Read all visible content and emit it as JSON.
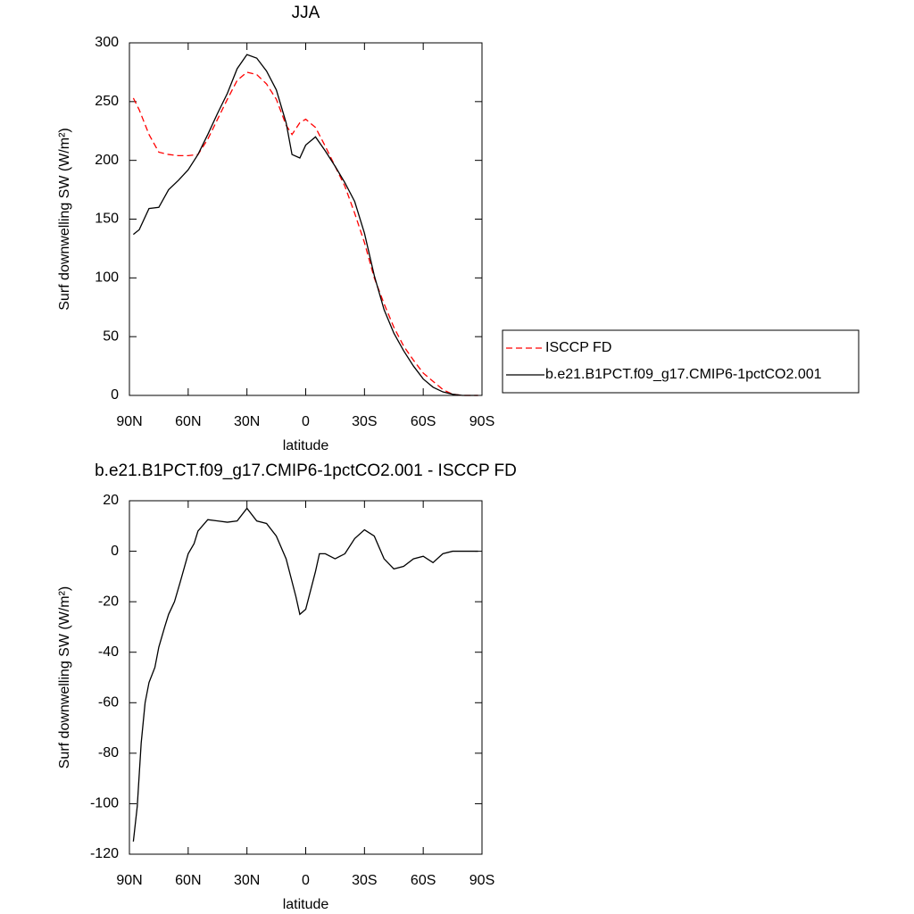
{
  "chart_data": [
    {
      "type": "line",
      "title": "JJA",
      "xlabel": "latitude",
      "ylabel": "Surf downwelling SW (W/m²)",
      "x": [
        88,
        85,
        80,
        75,
        70,
        65,
        60,
        55,
        50,
        45,
        40,
        35,
        30,
        25,
        20,
        15,
        10,
        7,
        3,
        0,
        -5,
        -10,
        -15,
        -20,
        -25,
        -30,
        -35,
        -40,
        -45,
        -50,
        -55,
        -60,
        -65,
        -70,
        -75,
        -80,
        -85,
        -88
      ],
      "xlim": [
        90,
        -90
      ],
      "xticks": [
        {
          "value": 90,
          "label": "90N"
        },
        {
          "value": 60,
          "label": "60N"
        },
        {
          "value": 30,
          "label": "30N"
        },
        0,
        {
          "value": -30,
          "label": "30S"
        },
        {
          "value": -60,
          "label": "60S"
        },
        {
          "value": -90,
          "label": "90S"
        }
      ],
      "ylim": [
        0,
        300
      ],
      "yticks": [
        0,
        50,
        100,
        150,
        200,
        250,
        300
      ],
      "legend": "right",
      "series": [
        {
          "name": "ISCCP FD",
          "color": "#ff0000",
          "line_style": "dashed",
          "values": [
            253,
            243,
            222,
            207,
            205,
            204,
            204,
            205,
            218,
            235,
            252,
            268,
            275,
            273,
            265,
            252,
            230,
            222,
            232,
            235,
            228,
            212,
            195,
            178,
            155,
            130,
            100,
            78,
            58,
            42,
            30,
            19,
            12,
            5,
            1,
            0,
            0,
            0
          ]
        },
        {
          "name": "b.e21.B1PCT.f09_g17.CMIP6-1pctCO2.001",
          "color": "#000000",
          "line_style": "solid",
          "values": [
            137,
            141,
            159,
            160,
            175,
            183,
            192,
            205,
            222,
            240,
            257,
            278,
            290,
            287,
            276,
            260,
            232,
            205,
            202,
            213,
            220,
            208,
            195,
            181,
            165,
            138,
            102,
            73,
            53,
            38,
            25,
            14,
            7,
            3,
            1,
            0,
            0,
            0
          ]
        }
      ]
    },
    {
      "type": "line",
      "title": "b.e21.B1PCT.f09_g17.CMIP6-1pctCO2.001 - ISCCP FD",
      "xlabel": "latitude",
      "ylabel": "Surf downwelling SW (W/m²)",
      "x": [
        88,
        86,
        84,
        82,
        80,
        77,
        75,
        72,
        70,
        67,
        64,
        60,
        57,
        55,
        50,
        45,
        40,
        35,
        30,
        25,
        20,
        15,
        10,
        5,
        3,
        0,
        -5,
        -7,
        -10,
        -15,
        -20,
        -25,
        -30,
        -35,
        -40,
        -45,
        -50,
        -55,
        -60,
        -65,
        -70,
        -75,
        -80,
        -85,
        -88
      ],
      "xlim": [
        90,
        -90
      ],
      "xticks": [
        {
          "value": 90,
          "label": "90N"
        },
        {
          "value": 60,
          "label": "60N"
        },
        {
          "value": 30,
          "label": "30N"
        },
        0,
        {
          "value": -30,
          "label": "30S"
        },
        {
          "value": -60,
          "label": "60S"
        },
        {
          "value": -90,
          "label": "90S"
        }
      ],
      "ylim": [
        -120,
        20
      ],
      "yticks": [
        -120,
        -100,
        -80,
        -60,
        -40,
        -20,
        0,
        20
      ],
      "series": [
        {
          "color": "#000000",
          "line_style": "solid",
          "values": [
            -115,
            -101,
            -76,
            -60,
            -52,
            -46,
            -38,
            -30,
            -25,
            -20,
            -12,
            -1,
            3,
            8,
            12.5,
            12,
            11.5,
            12,
            17,
            12,
            11,
            6,
            -3,
            -18,
            -25,
            -23,
            -8,
            -1,
            -1,
            -3,
            -1,
            5,
            8.5,
            6,
            -3,
            -7,
            -6,
            -3,
            -2,
            -4.5,
            -1,
            0,
            0,
            0,
            0
          ]
        }
      ]
    }
  ]
}
